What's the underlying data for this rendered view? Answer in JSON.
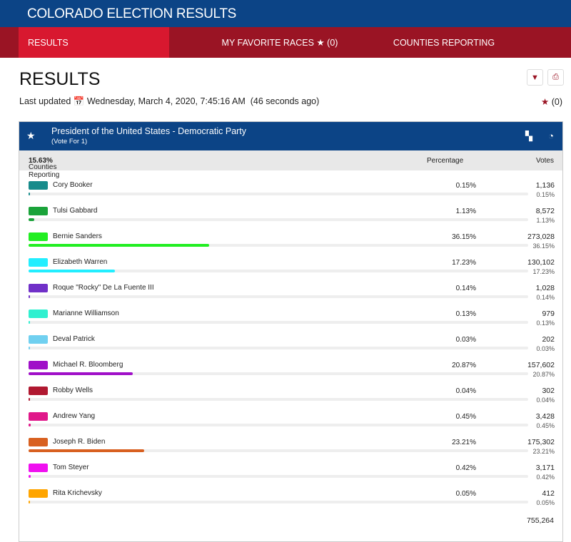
{
  "header": {
    "title": "COLORADO ELECTION RESULTS"
  },
  "nav": {
    "results": "RESULTS",
    "favorites": "MY FAVORITE RACES",
    "favorites_count": "(0)",
    "counties": "COUNTIES REPORTING"
  },
  "page": {
    "title": "RESULTS",
    "updated_label": "Last updated",
    "updated_value": "Wednesday, March 4, 2020, 7:45:16 AM",
    "updated_ago": "(46 seconds ago)",
    "fav_count": "(0)"
  },
  "race": {
    "title": "President of the United States - Democratic Party",
    "subtitle": "(Vote For 1)",
    "counties_label": "Counties Reporting",
    "counties_value": "15.63%",
    "col_percentage": "Percentage",
    "col_votes": "Votes",
    "total": "755,264",
    "candidates": [
      {
        "name": "Cory Booker",
        "pct": "0.15%",
        "votes": "1,136",
        "value": 0.15,
        "color": "#178b8b"
      },
      {
        "name": "Tulsi Gabbard",
        "pct": "1.13%",
        "votes": "8,572",
        "value": 1.13,
        "color": "#1aa33a"
      },
      {
        "name": "Bernie Sanders",
        "pct": "36.15%",
        "votes": "273,028",
        "value": 36.15,
        "color": "#22ee22"
      },
      {
        "name": "Elizabeth Warren",
        "pct": "17.23%",
        "votes": "130,102",
        "value": 17.23,
        "color": "#22eeff"
      },
      {
        "name": "Roque \"Rocky\" De La Fuente III",
        "pct": "0.14%",
        "votes": "1,028",
        "value": 0.14,
        "color": "#7030c8"
      },
      {
        "name": "Marianne Williamson",
        "pct": "0.13%",
        "votes": "979",
        "value": 0.13,
        "color": "#30f0d0"
      },
      {
        "name": "Deval Patrick",
        "pct": "0.03%",
        "votes": "202",
        "value": 0.03,
        "color": "#70d0f0"
      },
      {
        "name": "Michael R. Bloomberg",
        "pct": "20.87%",
        "votes": "157,602",
        "value": 20.87,
        "color": "#a010c8"
      },
      {
        "name": "Robby Wells",
        "pct": "0.04%",
        "votes": "302",
        "value": 0.04,
        "color": "#b01830"
      },
      {
        "name": "Andrew Yang",
        "pct": "0.45%",
        "votes": "3,428",
        "value": 0.45,
        "color": "#e0188a"
      },
      {
        "name": "Joseph R. Biden",
        "pct": "23.21%",
        "votes": "175,302",
        "value": 23.21,
        "color": "#d86020"
      },
      {
        "name": "Tom Steyer",
        "pct": "0.42%",
        "votes": "3,171",
        "value": 0.42,
        "color": "#f010f0"
      },
      {
        "name": "Rita Krichevsky",
        "pct": "0.05%",
        "votes": "412",
        "value": 0.05,
        "color": "#ffa500"
      }
    ]
  }
}
